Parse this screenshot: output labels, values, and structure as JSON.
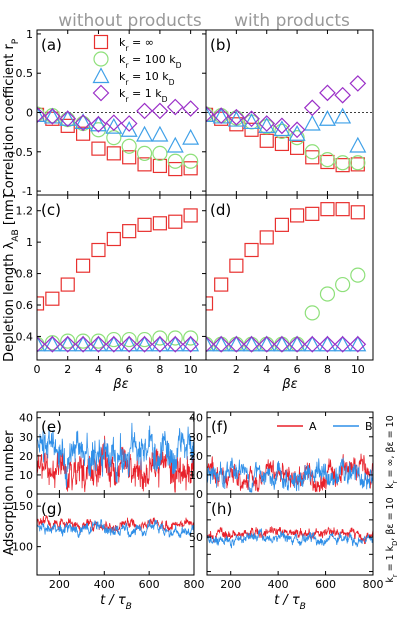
{
  "column_titles": [
    "without products",
    "with products"
  ],
  "colors": {
    "series_inf": "#e8312f",
    "series_100": "#8ee07a",
    "series_10": "#3fa0e8",
    "series_1": "#9b30c8",
    "trace_A": "#e8202a",
    "trace_B": "#2f8fe8",
    "title_gray": "#999999"
  },
  "chart_data": [
    {
      "id": "a",
      "type": "scatter",
      "panel_label": "(a)",
      "xlabel": "βε",
      "ylabel": "Correlation coefficient r_P",
      "xlim": [
        0,
        11
      ],
      "ylim": [
        -1.05,
        1.05
      ],
      "xticks": [
        0,
        2,
        4,
        6,
        8,
        10
      ],
      "yticks": [
        -1,
        -0.5,
        0,
        0.5,
        1
      ],
      "ytick_labels": [
        "-1",
        "-0.5",
        "0",
        "0.5",
        "1"
      ],
      "zero_line": true,
      "legend": [
        "k_r = ∞",
        "k_r = 100 k_D",
        "k_r = 10 k_D",
        "k_r = 1 k_D"
      ],
      "x": [
        0,
        1,
        2,
        3,
        4,
        5,
        6,
        7,
        8,
        9,
        10
      ],
      "series": [
        {
          "name": "k_r = ∞",
          "marker": "square",
          "values": [
            -0.03,
            -0.08,
            -0.17,
            -0.27,
            -0.46,
            -0.52,
            -0.57,
            -0.66,
            -0.68,
            -0.72,
            -0.71
          ]
        },
        {
          "name": "k_r = 100 k_D",
          "marker": "circle",
          "values": [
            -0.02,
            -0.04,
            -0.09,
            -0.14,
            -0.22,
            -0.32,
            -0.43,
            -0.52,
            -0.52,
            -0.62,
            -0.62
          ]
        },
        {
          "name": "k_r = 10 k_D",
          "marker": "triangle",
          "values": [
            -0.03,
            -0.05,
            -0.08,
            -0.12,
            -0.15,
            -0.18,
            -0.22,
            -0.28,
            -0.28,
            -0.42,
            -0.32
          ]
        },
        {
          "name": "k_r = 1 k_D",
          "marker": "diamond",
          "values": [
            -0.03,
            -0.05,
            -0.08,
            -0.13,
            -0.15,
            -0.13,
            -0.14,
            0.02,
            0.02,
            0.07,
            0.05
          ]
        }
      ]
    },
    {
      "id": "b",
      "type": "scatter",
      "panel_label": "(b)",
      "xlim": [
        0,
        11
      ],
      "ylim": [
        -1.05,
        1.05
      ],
      "xticks": [
        0,
        2,
        4,
        6,
        8,
        10
      ],
      "zero_line": true,
      "x": [
        0,
        1,
        2,
        3,
        4,
        5,
        6,
        7,
        8,
        9,
        10
      ],
      "series": [
        {
          "name": "k_r = ∞",
          "marker": "square",
          "values": [
            -0.03,
            -0.08,
            -0.15,
            -0.22,
            -0.36,
            -0.4,
            -0.45,
            -0.57,
            -0.63,
            -0.67,
            -0.66
          ]
        },
        {
          "name": "k_r = 100 k_D",
          "marker": "circle",
          "values": [
            -0.02,
            -0.04,
            -0.07,
            -0.12,
            -0.18,
            -0.24,
            -0.32,
            -0.5,
            -0.6,
            -0.64,
            -0.64
          ]
        },
        {
          "name": "k_r = 10 k_D",
          "marker": "triangle",
          "values": [
            -0.03,
            -0.05,
            -0.09,
            -0.12,
            -0.17,
            -0.21,
            -0.27,
            -0.14,
            -0.08,
            -0.05,
            -0.42
          ]
        },
        {
          "name": "k_r = 1 k_D",
          "marker": "diamond",
          "values": [
            -0.02,
            -0.04,
            -0.06,
            -0.08,
            -0.14,
            -0.17,
            -0.22,
            0.06,
            0.25,
            0.22,
            0.37
          ]
        }
      ]
    },
    {
      "id": "c",
      "type": "scatter",
      "panel_label": "(c)",
      "xlabel": "βε",
      "ylabel": "Depletion length λ_AB [nm]",
      "xlim": [
        0,
        11
      ],
      "ylim": [
        0.25,
        1.3
      ],
      "xticks": [
        0,
        2,
        4,
        6,
        8,
        10
      ],
      "yticks": [
        0.4,
        0.6,
        0.8,
        1.0,
        1.2
      ],
      "ytick_labels": [
        "0.4",
        "0.6",
        "0.8",
        "1",
        "1.2"
      ],
      "x": [
        0,
        1,
        2,
        3,
        4,
        5,
        6,
        7,
        8,
        9,
        10
      ],
      "series": [
        {
          "name": "k_r = ∞",
          "marker": "square",
          "values": [
            0.61,
            0.64,
            0.73,
            0.85,
            0.95,
            1.02,
            1.07,
            1.11,
            1.12,
            1.13,
            1.17
          ]
        },
        {
          "name": "k_r = 100 k_D",
          "marker": "circle",
          "values": [
            0.35,
            0.36,
            0.37,
            0.37,
            0.37,
            0.38,
            0.38,
            0.38,
            0.39,
            0.39,
            0.39
          ]
        },
        {
          "name": "k_r = 10 k_D",
          "marker": "triangle",
          "values": [
            0.35,
            0.35,
            0.35,
            0.35,
            0.35,
            0.35,
            0.35,
            0.35,
            0.35,
            0.35,
            0.35
          ]
        },
        {
          "name": "k_r = 1 k_D",
          "marker": "diamond",
          "values": [
            0.35,
            0.35,
            0.35,
            0.35,
            0.35,
            0.35,
            0.35,
            0.35,
            0.35,
            0.35,
            0.35
          ]
        }
      ]
    },
    {
      "id": "d",
      "type": "scatter",
      "panel_label": "(d)",
      "xlim": [
        0,
        11
      ],
      "ylim": [
        0.25,
        1.3
      ],
      "xticks": [
        0,
        2,
        4,
        6,
        8,
        10
      ],
      "x": [
        0,
        1,
        2,
        3,
        4,
        5,
        6,
        7,
        8,
        9,
        10
      ],
      "series": [
        {
          "name": "k_r = ∞",
          "marker": "square",
          "values": [
            0.61,
            0.73,
            0.85,
            0.95,
            1.03,
            1.11,
            1.17,
            1.18,
            1.21,
            1.21,
            1.19
          ]
        },
        {
          "name": "k_r = 100 k_D",
          "marker": "circle",
          "values": [
            0.35,
            0.35,
            0.35,
            0.35,
            0.35,
            0.35,
            0.35,
            0.55,
            0.67,
            0.73,
            0.79
          ]
        },
        {
          "name": "k_r = 10 k_D",
          "marker": "triangle",
          "values": [
            0.35,
            0.35,
            0.35,
            0.35,
            0.35,
            0.35,
            0.35,
            0.35,
            0.35,
            0.35,
            0.35
          ]
        },
        {
          "name": "k_r = 1 k_D",
          "marker": "diamond",
          "values": [
            0.35,
            0.35,
            0.35,
            0.35,
            0.35,
            0.35,
            0.35,
            0.35,
            0.35,
            0.35,
            0.35
          ]
        }
      ]
    },
    {
      "id": "e",
      "type": "line",
      "panel_label": "(e)",
      "ylabel": "Adsorption number",
      "xlim": [
        100,
        800
      ],
      "ylim": [
        0,
        43
      ],
      "xticks": [
        200,
        400,
        600,
        800
      ],
      "yticks": [
        0,
        10,
        20,
        30,
        40
      ],
      "series": [
        {
          "name": "A",
          "mean": 14,
          "amp": 9,
          "seed": 11
        },
        {
          "name": "B",
          "mean": 23,
          "amp": 10,
          "seed": 23
        }
      ]
    },
    {
      "id": "f",
      "type": "line",
      "panel_label": "(f)",
      "xlim": [
        100,
        800
      ],
      "ylim": [
        0,
        43
      ],
      "xticks": [
        200,
        400,
        600,
        800
      ],
      "yticks": [
        0,
        10,
        20,
        30,
        40
      ],
      "legend": [
        "A",
        "B"
      ],
      "series": [
        {
          "name": "A",
          "mean": 10,
          "amp": 6,
          "seed": 37
        },
        {
          "name": "B",
          "mean": 9,
          "amp": 6,
          "seed": 51
        }
      ]
    },
    {
      "id": "g",
      "type": "line",
      "panel_label": "(g)",
      "xlabel": "t / τ_B",
      "xlim": [
        100,
        800
      ],
      "ylim": [
        65,
        165
      ],
      "xticks": [
        200,
        400,
        600,
        800
      ],
      "yticks": [
        100,
        150
      ],
      "series": [
        {
          "name": "A",
          "mean": 127,
          "amp": 6,
          "seed": 61
        },
        {
          "name": "B",
          "mean": 121,
          "amp": 7,
          "seed": 73
        }
      ]
    },
    {
      "id": "h",
      "type": "line",
      "panel_label": "(h)",
      "xlabel": "t / τ_B",
      "xlim": [
        100,
        800
      ],
      "ylim": [
        28,
        75
      ],
      "xticks": [
        200,
        400,
        600,
        800
      ],
      "yticks": [
        30,
        40,
        50,
        60,
        70
      ],
      "ytick_labels": [
        "",
        "",
        "50",
        "",
        ""
      ],
      "series": [
        {
          "name": "A",
          "mean": 52,
          "amp": 3,
          "seed": 83
        },
        {
          "name": "B",
          "mean": 49,
          "amp": 3,
          "seed": 97
        }
      ]
    }
  ],
  "right_labels": [
    "k_r = ∞, βε = 10",
    "k_r = 1 k_D, βε = 10"
  ]
}
